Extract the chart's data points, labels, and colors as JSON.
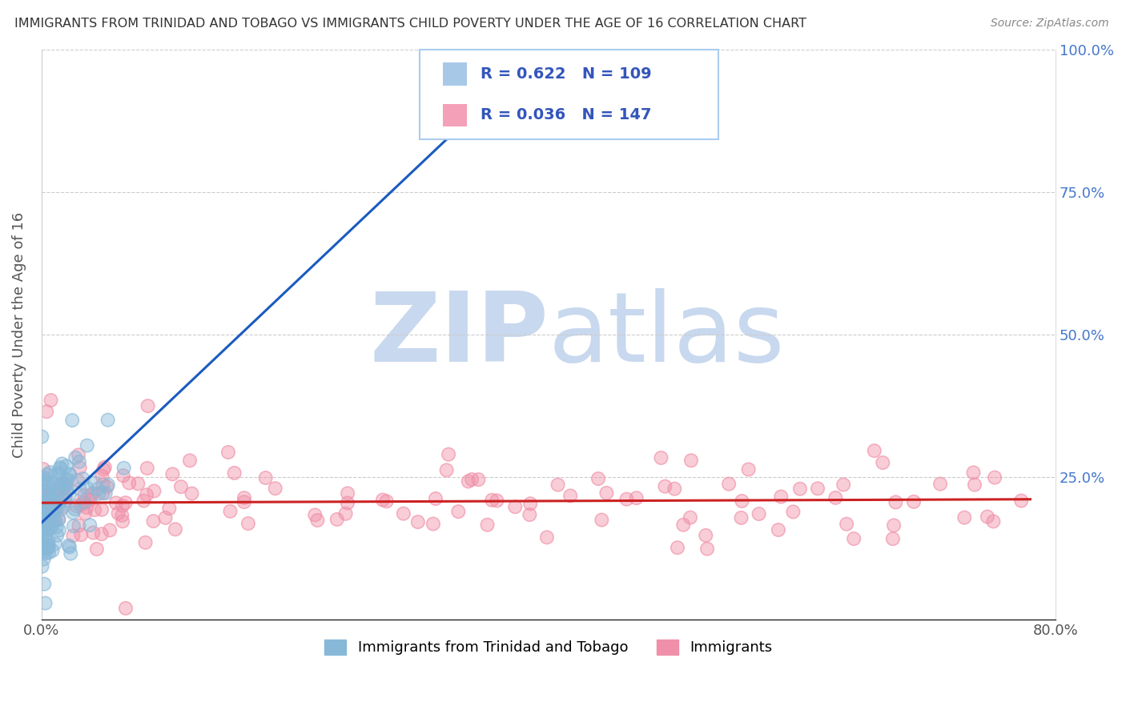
{
  "title": "IMMIGRANTS FROM TRINIDAD AND TOBAGO VS IMMIGRANTS CHILD POVERTY UNDER THE AGE OF 16 CORRELATION CHART",
  "source": "Source: ZipAtlas.com",
  "ylabel": "Child Poverty Under the Age of 16",
  "xlim": [
    0.0,
    0.8
  ],
  "ylim": [
    0.0,
    1.0
  ],
  "legend_entries": [
    {
      "label": "Immigrants from Trinidad and Tobago",
      "color": "#a8c8e8",
      "R": "0.622",
      "N": "109"
    },
    {
      "label": "Immigrants",
      "color": "#f4a0b8",
      "R": "0.036",
      "N": "147"
    }
  ],
  "background_color": "#ffffff",
  "watermark_zip": "ZIP",
  "watermark_atlas": "atlas",
  "watermark_color": "#c8d8ee",
  "grid_color": "#cccccc",
  "blue_line_color": "#1a5bbf",
  "red_line_color": "#cc2222",
  "blue_scatter_color": "#88b8d8",
  "pink_scatter_color": "#f090a8",
  "N_blue": 109,
  "N_pink": 147,
  "seed": 42
}
